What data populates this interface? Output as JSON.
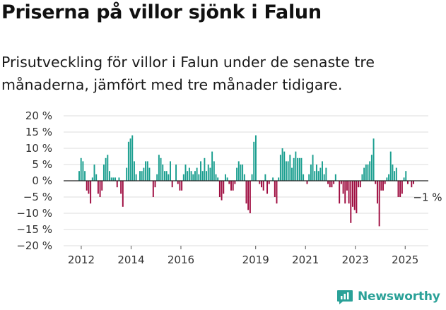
{
  "header": {
    "title": "Priserna på villor sjönk i Falun",
    "subtitle": "Prisutveckling för villor i Falun under de senaste tre månaderna, jämfört med tre månader tidigare."
  },
  "brand": {
    "name": "Newsworthy",
    "icon": "newsworthy-logo-icon",
    "color": "#2aa198"
  },
  "colors": {
    "positive": "#1a9e8f",
    "negative": "#9e0b3f"
  },
  "chart_data": {
    "type": "bar",
    "title": "",
    "xlabel": "",
    "ylabel": "",
    "ylim": [
      -20,
      20
    ],
    "grid": true,
    "y_ticks": [
      "20 %",
      "15 %",
      "10 %",
      "5 %",
      "0 %",
      "−5 %",
      "−10 %",
      "−15 %",
      "−20 %"
    ],
    "x_ticks": [
      "2012",
      "2014",
      "2016",
      "2019",
      "2021",
      "2023",
      "2025"
    ],
    "x_start": "2011-12",
    "x_end": "2025-05",
    "last_value_label": "−1 %",
    "series": [
      {
        "name": "",
        "values": [
          3,
          7,
          6,
          3,
          -3,
          -4,
          -7,
          1,
          5,
          2,
          -4,
          -5,
          -3,
          5,
          7,
          8,
          3,
          1,
          1,
          1,
          -2,
          1,
          -4,
          -8,
          0,
          4,
          12,
          13,
          14,
          6,
          2,
          0,
          3,
          3,
          4,
          6,
          6,
          4,
          0,
          -5,
          -2,
          2,
          8,
          7,
          5,
          3,
          3,
          2,
          6,
          -2,
          0,
          5,
          -1,
          -3,
          -3,
          2,
          5,
          3,
          4,
          3,
          2,
          3,
          4,
          2,
          6,
          3,
          7,
          3,
          5,
          4,
          9,
          6,
          2,
          1,
          -5,
          -6,
          -4,
          2,
          1,
          -1,
          -3,
          -3,
          -1,
          4,
          6,
          5,
          5,
          2,
          -7,
          -9,
          -10,
          2,
          12,
          14,
          0,
          -1,
          -2,
          -3,
          2,
          -4,
          -1,
          0,
          1,
          -5,
          -7,
          1,
          8,
          10,
          9,
          6,
          6,
          8,
          4,
          7,
          9,
          7,
          7,
          7,
          2,
          0,
          -1,
          2,
          5,
          8,
          3,
          5,
          3,
          4,
          6,
          2,
          4,
          -1,
          -2,
          -2,
          -1,
          2,
          0,
          -7,
          -1,
          -4,
          -7,
          -3,
          -7,
          -13,
          -8,
          -9,
          -10,
          -2,
          -2,
          2,
          4,
          5,
          5,
          6,
          8,
          13,
          -1,
          -7,
          -14,
          -3,
          -3,
          -1,
          1,
          2,
          9,
          5,
          3,
          4,
          -5,
          -5,
          -4,
          1,
          3,
          -1,
          0,
          -2,
          -1
        ]
      }
    ]
  }
}
